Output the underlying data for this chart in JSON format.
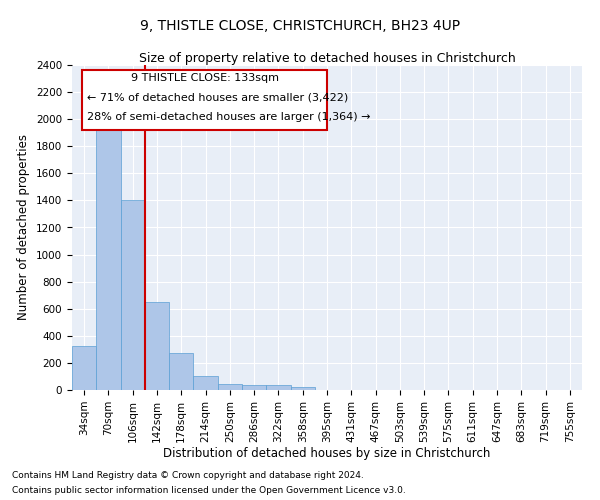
{
  "title": "9, THISTLE CLOSE, CHRISTCHURCH, BH23 4UP",
  "subtitle": "Size of property relative to detached houses in Christchurch",
  "xlabel": "Distribution of detached houses by size in Christchurch",
  "ylabel": "Number of detached properties",
  "footnote1": "Contains HM Land Registry data © Crown copyright and database right 2024.",
  "footnote2": "Contains public sector information licensed under the Open Government Licence v3.0.",
  "categories": [
    "34sqm",
    "70sqm",
    "106sqm",
    "142sqm",
    "178sqm",
    "214sqm",
    "250sqm",
    "286sqm",
    "322sqm",
    "358sqm",
    "395sqm",
    "431sqm",
    "467sqm",
    "503sqm",
    "539sqm",
    "575sqm",
    "611sqm",
    "647sqm",
    "683sqm",
    "719sqm",
    "755sqm"
  ],
  "values": [
    325,
    1950,
    1405,
    650,
    270,
    100,
    48,
    38,
    35,
    22,
    0,
    0,
    0,
    0,
    0,
    0,
    0,
    0,
    0,
    0,
    0
  ],
  "bar_color": "#aec6e8",
  "bar_edge_color": "#5a9fd4",
  "ylim": [
    0,
    2400
  ],
  "yticks": [
    0,
    200,
    400,
    600,
    800,
    1000,
    1200,
    1400,
    1600,
    1800,
    2000,
    2200,
    2400
  ],
  "vline_x": 2.5,
  "vline_color": "#cc0000",
  "annot_line1": "9 THISTLE CLOSE: 133sqm",
  "annot_line2": "← 71% of detached houses are smaller (3,422)",
  "annot_line3": "28% of semi-detached houses are larger (1,364) →",
  "bg_color": "#e8eef7",
  "title_fontsize": 10,
  "subtitle_fontsize": 9,
  "axis_label_fontsize": 8.5,
  "tick_fontsize": 7.5,
  "annotation_fontsize": 8
}
